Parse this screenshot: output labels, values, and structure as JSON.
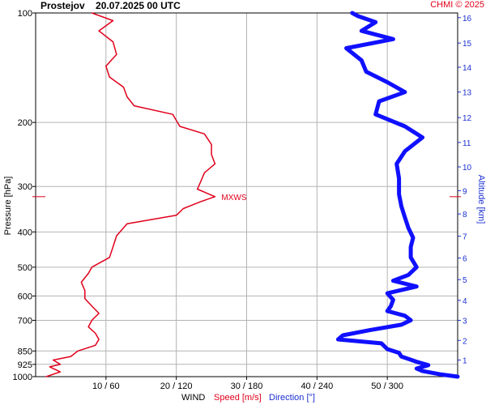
{
  "header": {
    "title": "Prostejov    20.07.2025 00 UTC",
    "credit": "CHMI © 2025"
  },
  "axes": {
    "left_label": "Pressure [hPa]",
    "right_label": "Altitude [km]",
    "x_label_wind": "WIND",
    "x_label_speed": "Speed [m/s]",
    "x_label_direction": "Direction [°]"
  },
  "colors": {
    "speed": "#e0001a",
    "direction": "#1010ff",
    "right_axis": "#1a2fd0",
    "grid": "#b4b4b4"
  },
  "chart_data": {
    "type": "line",
    "pressure_ticks": [
      100,
      200,
      300,
      400,
      500,
      600,
      700,
      850,
      925,
      1000
    ],
    "altitude_ticks": [
      {
        "km": 1,
        "hpa": 900
      },
      {
        "km": 2,
        "hpa": 795
      },
      {
        "km": 3,
        "hpa": 700
      },
      {
        "km": 4,
        "hpa": 617
      },
      {
        "km": 5,
        "hpa": 541
      },
      {
        "km": 6,
        "hpa": 472
      },
      {
        "km": 7,
        "hpa": 411
      },
      {
        "km": 8,
        "hpa": 357
      },
      {
        "km": 9,
        "hpa": 308
      },
      {
        "km": 10,
        "hpa": 265
      },
      {
        "km": 11,
        "hpa": 227
      },
      {
        "km": 12,
        "hpa": 194
      },
      {
        "km": 13,
        "hpa": 165
      },
      {
        "km": 14,
        "hpa": 141
      },
      {
        "km": 15,
        "hpa": 121
      },
      {
        "km": 16,
        "hpa": 103
      }
    ],
    "x_ticks": [
      "10 / 60",
      "20 / 120",
      "30 / 180",
      "40 / 240",
      "50 / 300"
    ],
    "speed_range": [
      0,
      60
    ],
    "direction_range": [
      0,
      360
    ],
    "annotation": {
      "text": "MXWS",
      "hpa": 320
    },
    "series": [
      {
        "name": "Speed [m/s]",
        "axis": "speed",
        "points": [
          [
            1000,
            1.5
          ],
          [
            970,
            3.5
          ],
          [
            940,
            2.0
          ],
          [
            925,
            3.5
          ],
          [
            900,
            2.5
          ],
          [
            880,
            5.0
          ],
          [
            850,
            6.0
          ],
          [
            820,
            8.5
          ],
          [
            790,
            9.0
          ],
          [
            760,
            8.5
          ],
          [
            730,
            7.5
          ],
          [
            700,
            8.0
          ],
          [
            670,
            9.0
          ],
          [
            640,
            8.0
          ],
          [
            610,
            7.0
          ],
          [
            580,
            7.0
          ],
          [
            550,
            6.5
          ],
          [
            520,
            7.5
          ],
          [
            500,
            8.0
          ],
          [
            470,
            10.5
          ],
          [
            440,
            11.0
          ],
          [
            410,
            11.5
          ],
          [
            380,
            13.0
          ],
          [
            360,
            20.0
          ],
          [
            345,
            21.0
          ],
          [
            330,
            23.5
          ],
          [
            320,
            25.5
          ],
          [
            305,
            23.0
          ],
          [
            290,
            23.5
          ],
          [
            275,
            24.0
          ],
          [
            260,
            25.5
          ],
          [
            245,
            25.0
          ],
          [
            230,
            25.0
          ],
          [
            215,
            24.0
          ],
          [
            205,
            20.5
          ],
          [
            190,
            19.5
          ],
          [
            180,
            14.0
          ],
          [
            170,
            13.0
          ],
          [
            160,
            12.5
          ],
          [
            150,
            10.5
          ],
          [
            140,
            10.0
          ],
          [
            130,
            11.5
          ],
          [
            120,
            11.0
          ],
          [
            112,
            9.0
          ],
          [
            105,
            11.0
          ],
          [
            100,
            8.0
          ]
        ]
      },
      {
        "name": "Direction [°]",
        "axis": "direction",
        "points": [
          [
            1000,
            360
          ],
          [
            985,
            345
          ],
          [
            965,
            330
          ],
          [
            950,
            325
          ],
          [
            930,
            335
          ],
          [
            910,
            325
          ],
          [
            880,
            312
          ],
          [
            860,
            310
          ],
          [
            840,
            300
          ],
          [
            810,
            295
          ],
          [
            790,
            258
          ],
          [
            770,
            262
          ],
          [
            745,
            285
          ],
          [
            720,
            312
          ],
          [
            700,
            320
          ],
          [
            680,
            315
          ],
          [
            660,
            300
          ],
          [
            640,
            303
          ],
          [
            615,
            305
          ],
          [
            590,
            300
          ],
          [
            565,
            325
          ],
          [
            545,
            305
          ],
          [
            525,
            318
          ],
          [
            500,
            325
          ],
          [
            470,
            320
          ],
          [
            440,
            320
          ],
          [
            415,
            322
          ],
          [
            390,
            318
          ],
          [
            365,
            315
          ],
          [
            340,
            312
          ],
          [
            315,
            310
          ],
          [
            285,
            310
          ],
          [
            260,
            308
          ],
          [
            240,
            315
          ],
          [
            220,
            330
          ],
          [
            205,
            315
          ],
          [
            190,
            290
          ],
          [
            175,
            293
          ],
          [
            165,
            315
          ],
          [
            155,
            300
          ],
          [
            145,
            282
          ],
          [
            135,
            278
          ],
          [
            125,
            265
          ],
          [
            118,
            305
          ],
          [
            112,
            278
          ],
          [
            106,
            290
          ],
          [
            102,
            275
          ],
          [
            100,
            270
          ]
        ]
      }
    ]
  }
}
